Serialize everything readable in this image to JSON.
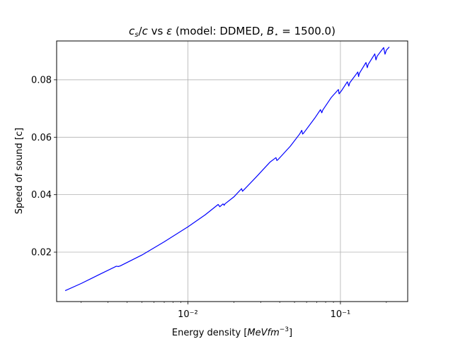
{
  "chart_data": {
    "type": "line",
    "title": "c_s/c vs ε (model: DDMED, B⋆ = 1500.0)",
    "xlabel": "Energy density [MeVfm⁻³]",
    "ylabel": "Speed of sound [c]",
    "xscale": "log",
    "xlim": [
      0.00138,
      0.276
    ],
    "ylim": [
      0.0028,
      0.0935
    ],
    "grid": true,
    "line_color": "#0000ff",
    "x_ticks": [
      {
        "value": 0.01,
        "label": "10⁻²"
      },
      {
        "value": 0.1,
        "label": "10⁻¹"
      }
    ],
    "y_ticks": [
      {
        "value": 0.02,
        "label": "0.02"
      },
      {
        "value": 0.04,
        "label": "0.04"
      },
      {
        "value": 0.06,
        "label": "0.06"
      },
      {
        "value": 0.08,
        "label": "0.08"
      }
    ],
    "series": [
      {
        "x": [
          0.00157,
          0.002,
          0.0026,
          0.0034,
          0.0035,
          0.0036,
          0.005,
          0.007,
          0.01,
          0.013,
          0.0158,
          0.0162,
          0.017,
          0.0173,
          0.0175,
          0.02,
          0.0225,
          0.0228,
          0.0232,
          0.028,
          0.0345,
          0.0378,
          0.0383,
          0.039,
          0.047,
          0.054,
          0.0558,
          0.0565,
          0.0575,
          0.068,
          0.074,
          0.0755,
          0.0765,
          0.087,
          0.097,
          0.098,
          0.102,
          0.111,
          0.1135,
          0.115,
          0.13,
          0.1315,
          0.133,
          0.147,
          0.15,
          0.152,
          0.168,
          0.171,
          0.174,
          0.192,
          0.196,
          0.2,
          0.209
        ],
        "values": [
          0.0066,
          0.0091,
          0.0121,
          0.0151,
          0.015,
          0.0152,
          0.019,
          0.0236,
          0.0288,
          0.033,
          0.0366,
          0.0358,
          0.0368,
          0.0363,
          0.0368,
          0.0392,
          0.0421,
          0.0412,
          0.0416,
          0.0461,
          0.0513,
          0.0529,
          0.0519,
          0.0522,
          0.0569,
          0.0611,
          0.0624,
          0.0611,
          0.0615,
          0.0667,
          0.0696,
          0.0685,
          0.0694,
          0.0738,
          0.0766,
          0.0751,
          0.0763,
          0.0793,
          0.0778,
          0.0789,
          0.0827,
          0.0811,
          0.0822,
          0.086,
          0.0842,
          0.0853,
          0.089,
          0.0869,
          0.0882,
          0.0912,
          0.0889,
          0.0903,
          0.0914
        ]
      }
    ]
  }
}
